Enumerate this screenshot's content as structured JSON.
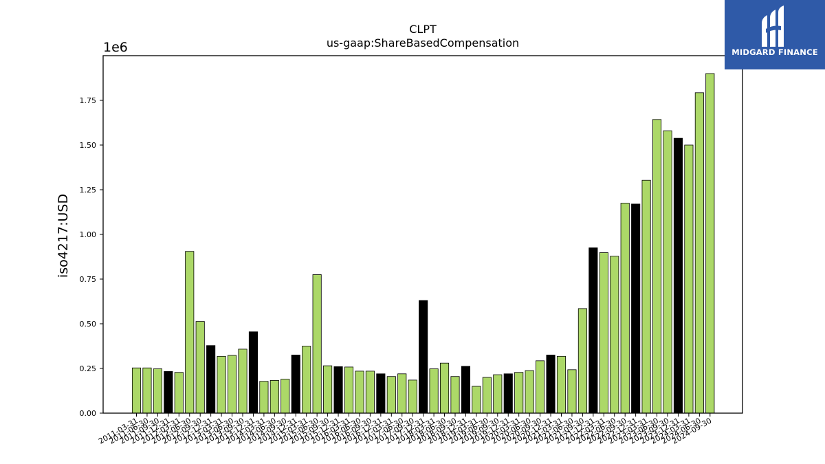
{
  "logo": {
    "text": "MIDGARD FINANCE",
    "background": "#2f5aa8"
  },
  "colors": {
    "highlight": "#000000",
    "normal": "#acd868"
  },
  "chart_data": {
    "type": "bar",
    "title": "CLPT",
    "subtitle": "us-gaap:ShareBasedCompensation",
    "ylabel": "iso4217:USD",
    "xlabel": "",
    "y_scale_label": "1e6",
    "ylim": [
      0,
      2.0
    ],
    "y_ticks": [
      "0.00",
      "0.25",
      "0.50",
      "0.75",
      "1.00",
      "1.25",
      "1.50",
      "1.75"
    ],
    "grid": false,
    "categories": [
      "2011-03-31",
      "2011-06-30",
      "2011-09-30",
      "2011-12-31",
      "2012-03-31",
      "2012-06-30",
      "2012-09-30",
      "2012-12-31",
      "2013-03-31",
      "2013-06-30",
      "2013-09-30",
      "2013-12-31",
      "2014-03-31",
      "2014-06-30",
      "2014-09-30",
      "2014-12-31",
      "2015-03-31",
      "2015-06-30",
      "2015-09-30",
      "2015-12-31",
      "2016-03-31",
      "2016-06-30",
      "2016-09-30",
      "2016-12-31",
      "2017-03-31",
      "2017-06-30",
      "2017-09-30",
      "2017-12-31",
      "2018-03-31",
      "2018-06-30",
      "2018-09-30",
      "2018-12-31",
      "2019-03-31",
      "2019-06-30",
      "2019-09-30",
      "2019-12-31",
      "2020-03-31",
      "2020-06-30",
      "2020-09-30",
      "2020-12-31",
      "2021-03-31",
      "2021-06-30",
      "2021-09-30",
      "2021-12-31",
      "2022-03-31",
      "2022-06-30",
      "2022-09-30",
      "2022-12-31",
      "2023-03-31",
      "2023-06-30",
      "2023-09-30",
      "2023-12-31",
      "2024-03-31",
      "2024-06-30",
      "2024-09-30"
    ],
    "values": [
      0.253,
      0.253,
      0.248,
      0.233,
      0.228,
      0.905,
      0.513,
      0.378,
      0.318,
      0.323,
      0.358,
      0.455,
      0.178,
      0.183,
      0.19,
      0.325,
      0.375,
      0.775,
      0.265,
      0.26,
      0.258,
      0.235,
      0.235,
      0.22,
      0.205,
      0.22,
      0.185,
      0.63,
      0.248,
      0.28,
      0.205,
      0.262,
      0.15,
      0.2,
      0.215,
      0.22,
      0.228,
      0.238,
      0.293,
      0.325,
      0.318,
      0.243,
      0.585,
      0.925,
      0.898,
      0.878,
      1.175,
      1.17,
      1.303,
      1.643,
      1.58,
      1.538,
      1.5,
      1.793,
      1.9
    ],
    "highlight": [
      false,
      false,
      false,
      true,
      false,
      false,
      false,
      true,
      false,
      false,
      false,
      true,
      false,
      false,
      false,
      true,
      false,
      false,
      false,
      true,
      false,
      false,
      false,
      true,
      false,
      false,
      false,
      true,
      false,
      false,
      false,
      true,
      false,
      false,
      false,
      true,
      false,
      false,
      false,
      true,
      false,
      false,
      false,
      true,
      false,
      false,
      false,
      true,
      false,
      false,
      false,
      true,
      false,
      false,
      false
    ]
  }
}
